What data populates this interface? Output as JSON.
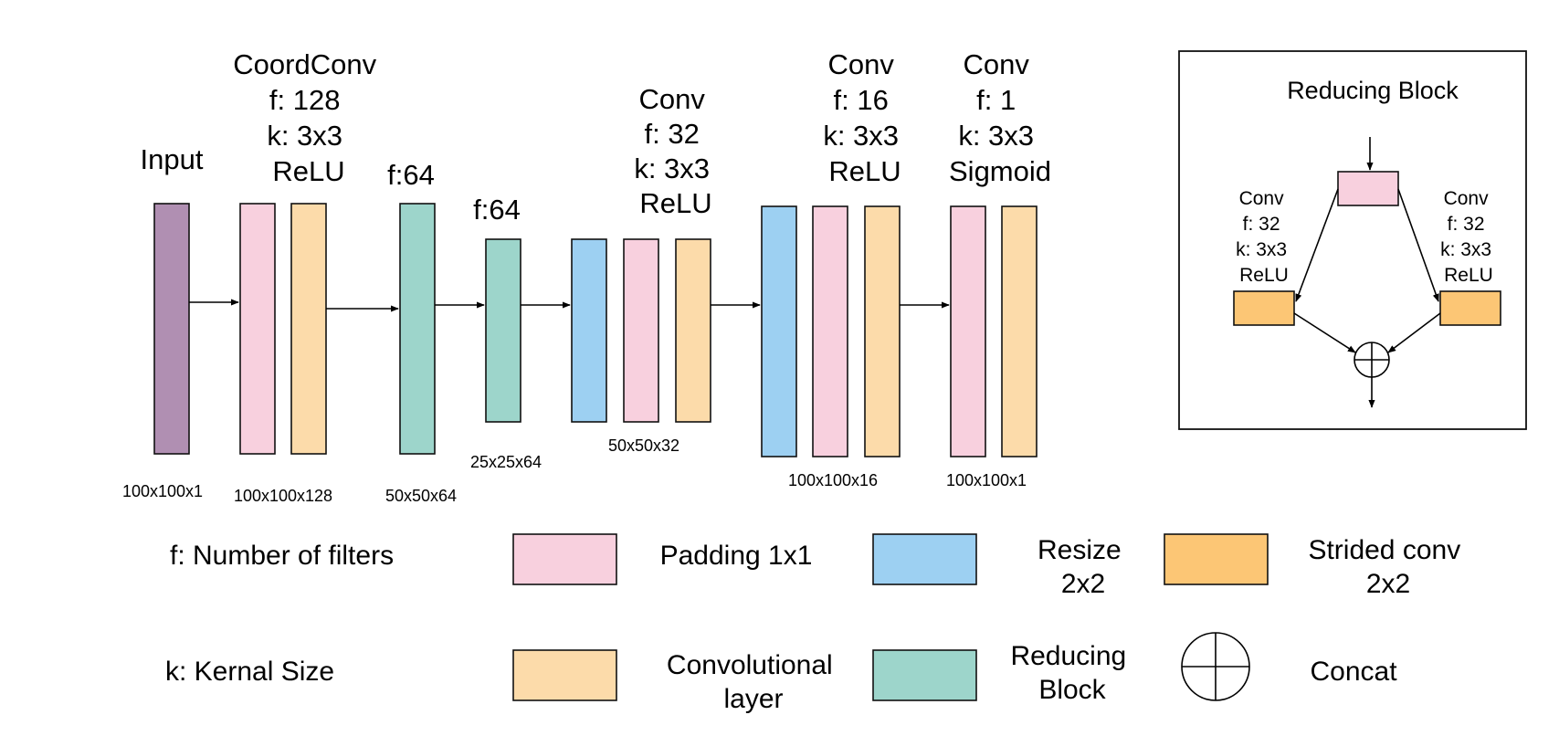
{
  "colors": {
    "input": "#b08fb2",
    "padding": "#f8d0de",
    "conv": "#fcdbaa",
    "reducing": "#9dd5cb",
    "resize": "#9dd0f2",
    "strided": "#fcc675"
  },
  "network": {
    "input": {
      "title": "Input",
      "dims": "100x100x1"
    },
    "stage1": {
      "lines": [
        "CoordConv",
        "f: 128",
        "k: 3x3",
        "ReLU"
      ],
      "dims": "100x100x128"
    },
    "stage2": {
      "title": "f:64",
      "dims": "50x50x64"
    },
    "stage3": {
      "title": "f:64",
      "dims": "25x25x64"
    },
    "stage4": {
      "lines": [
        "Conv",
        "f: 32",
        "k: 3x3",
        "ReLU"
      ],
      "dims": "50x50x32"
    },
    "stage5": {
      "lines": [
        "Conv",
        "f: 16",
        "k: 3x3",
        "ReLU"
      ],
      "dims": "100x100x16"
    },
    "stage6": {
      "lines": [
        "Conv",
        "f: 1",
        "k: 3x3",
        "Sigmoid"
      ],
      "dims": "100x100x1"
    }
  },
  "reducing_block": {
    "title": "Reducing Block",
    "left_lines": [
      "Conv",
      "f: 32",
      "k: 3x3",
      "ReLU"
    ],
    "right_lines": [
      "Conv",
      "f: 32",
      "k: 3x3",
      "ReLU"
    ]
  },
  "legend": {
    "f_note": "f: Number of filters",
    "k_note": "k: Kernal Size",
    "padding": [
      "Padding 1x1"
    ],
    "resize": [
      "Resize",
      "2x2"
    ],
    "strided": [
      "Strided conv",
      "2x2"
    ],
    "conv": [
      "Convolutional",
      "layer"
    ],
    "reducing": [
      "Reducing",
      "Block"
    ],
    "concat": [
      "Concat"
    ]
  }
}
